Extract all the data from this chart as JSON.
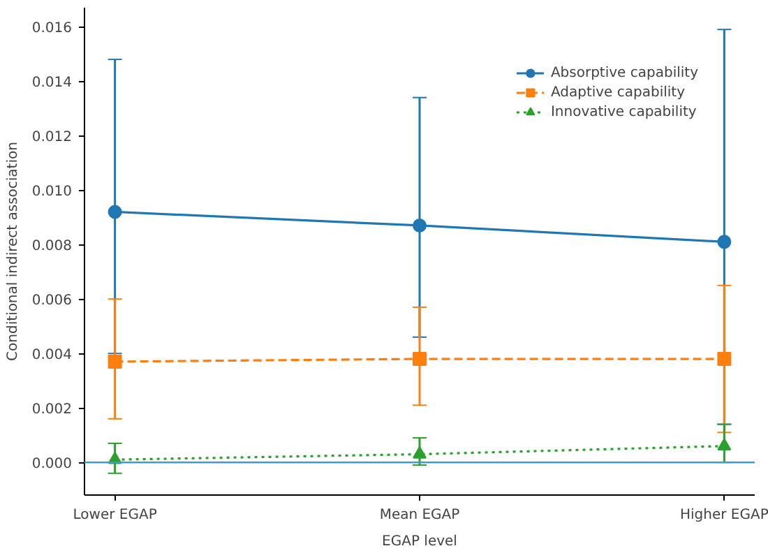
{
  "chart_data": {
    "type": "line",
    "xlabel": "EGAP level",
    "ylabel": "Conditional indirect association",
    "categories": [
      "Lower EGAP",
      "Mean EGAP",
      "Higher EGAP"
    ],
    "series": [
      {
        "name": "Absorptive capability",
        "color": "#1f77b4",
        "values": [
          0.0092,
          0.0087,
          0.0081
        ],
        "errors": [
          [
            0.004,
            0.0148
          ],
          [
            0.0046,
            0.0134
          ],
          [
            0.0014,
            0.0159
          ]
        ],
        "marker": "circle",
        "line_style": "solid"
      },
      {
        "name": "Adaptive capability",
        "color": "#ff7f0e",
        "values": [
          0.0037,
          0.0038,
          0.0038
        ],
        "errors": [
          [
            0.0016,
            0.006
          ],
          [
            0.0021,
            0.0057
          ],
          [
            0.0011,
            0.0065
          ]
        ],
        "marker": "square",
        "line_style": "dashed"
      },
      {
        "name": "Innovative capability",
        "color": "#2ca02c",
        "values": [
          0.0001,
          0.0003,
          0.0006
        ],
        "errors": [
          [
            -0.0004,
            0.0007
          ],
          [
            -0.0001,
            0.0009
          ],
          [
            0.0,
            0.0014
          ]
        ],
        "marker": "triangle",
        "line_style": "dotted"
      }
    ],
    "ylim": [
      -0.0012,
      0.0167
    ],
    "yticks": [
      {
        "value": 0,
        "label": "0.000"
      },
      {
        "value": 0.002,
        "label": "0.002"
      },
      {
        "value": 0.004,
        "label": "0.004"
      },
      {
        "value": 0.006,
        "label": "0.006"
      },
      {
        "value": 0.008,
        "label": "0.008"
      },
      {
        "value": 0.01,
        "label": "0.010"
      },
      {
        "value": 0.012,
        "label": "0.012"
      },
      {
        "value": 0.014,
        "label": "0.014"
      },
      {
        "value": 0.016,
        "label": "0.016"
      }
    ],
    "ref_lines": [
      {
        "axis": "y",
        "value": 0,
        "color": "#3a9fc8",
        "line_style": "solid"
      }
    ],
    "grid": false,
    "legend": "top right"
  }
}
